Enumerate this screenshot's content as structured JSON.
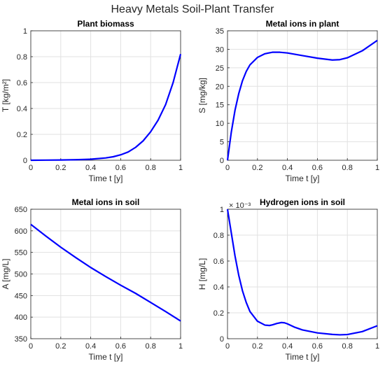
{
  "figure": {
    "title": "Heavy Metals Soil-Plant Transfer"
  },
  "colors": {
    "line": "#0000ff",
    "grid": "#e1e1e1",
    "axes": "#262626"
  },
  "chart_data": [
    {
      "type": "line",
      "title": "Plant biomass",
      "xlabel": "Time t [y]",
      "ylabel": "T [kg/m²]",
      "xlim": [
        0,
        1
      ],
      "ylim": [
        0,
        1
      ],
      "xticks": [
        0,
        0.2,
        0.4,
        0.6,
        0.8,
        1
      ],
      "xtick_labels": [
        "0",
        "0.2",
        "0.4",
        "0.6",
        "0.8",
        "1"
      ],
      "yticks": [
        0,
        0.2,
        0.4,
        0.6,
        0.8,
        1
      ],
      "ytick_labels": [
        "0",
        "0.2",
        "0.4",
        "0.6",
        "0.8",
        "1"
      ],
      "grid": true,
      "series": [
        {
          "x": [
            0,
            0.1,
            0.2,
            0.3,
            0.4,
            0.5,
            0.55,
            0.6,
            0.65,
            0.7,
            0.75,
            0.8,
            0.85,
            0.9,
            0.95,
            1
          ],
          "y": [
            0,
            0.001,
            0.002,
            0.004,
            0.008,
            0.018,
            0.027,
            0.042,
            0.064,
            0.1,
            0.15,
            0.22,
            0.31,
            0.43,
            0.6,
            0.82
          ]
        }
      ]
    },
    {
      "type": "line",
      "title": "Metal ions in plant",
      "xlabel": "Time t [y]",
      "ylabel": "S [mg/kg]",
      "xlim": [
        0,
        1
      ],
      "ylim": [
        0,
        35
      ],
      "xticks": [
        0,
        0.2,
        0.4,
        0.6,
        0.8,
        1
      ],
      "xtick_labels": [
        "0",
        "0.2",
        "0.4",
        "0.6",
        "0.8",
        "1"
      ],
      "yticks": [
        0,
        5,
        10,
        15,
        20,
        25,
        30,
        35
      ],
      "ytick_labels": [
        "0",
        "5",
        "10",
        "15",
        "20",
        "25",
        "30",
        "35"
      ],
      "grid": true,
      "series": [
        {
          "x": [
            0,
            0.025,
            0.05,
            0.075,
            0.1,
            0.125,
            0.15,
            0.2,
            0.25,
            0.3,
            0.35,
            0.4,
            0.5,
            0.6,
            0.7,
            0.75,
            0.8,
            0.9,
            1
          ],
          "y": [
            0,
            7.5,
            13.5,
            18,
            21.5,
            24,
            25.8,
            27.8,
            28.8,
            29.2,
            29.2,
            29,
            28.3,
            27.6,
            27.1,
            27.2,
            27.7,
            29.6,
            32.4
          ]
        }
      ]
    },
    {
      "type": "line",
      "title": "Metal ions in soil",
      "xlabel": "Time t [y]",
      "ylabel": "A [mg/L]",
      "xlim": [
        0,
        1
      ],
      "ylim": [
        350,
        650
      ],
      "xticks": [
        0,
        0.2,
        0.4,
        0.6,
        0.8,
        1
      ],
      "xtick_labels": [
        "0",
        "0.2",
        "0.4",
        "0.6",
        "0.8",
        "1"
      ],
      "yticks": [
        350,
        400,
        450,
        500,
        550,
        600,
        650
      ],
      "ytick_labels": [
        "350",
        "400",
        "450",
        "500",
        "550",
        "600",
        "650"
      ],
      "grid": true,
      "series": [
        {
          "x": [
            0,
            0.1,
            0.2,
            0.3,
            0.4,
            0.5,
            0.6,
            0.7,
            0.8,
            0.9,
            1
          ],
          "y": [
            615,
            588,
            562,
            538,
            515,
            494,
            474,
            455,
            434,
            413,
            391
          ]
        }
      ]
    },
    {
      "type": "line",
      "title": "Hydrogen ions in soil",
      "xlabel": "Time t [y]",
      "ylabel": "H [mg/L]",
      "xlim": [
        0,
        1
      ],
      "ylim": [
        0,
        0.001
      ],
      "xticks": [
        0,
        0.2,
        0.4,
        0.6,
        0.8,
        1
      ],
      "xtick_labels": [
        "0",
        "0.2",
        "0.4",
        "0.6",
        "0.8",
        "1"
      ],
      "yticks": [
        0,
        0.0002,
        0.0004,
        0.0006,
        0.0008,
        0.001
      ],
      "ytick_labels": [
        "0",
        "0.2",
        "0.4",
        "0.6",
        "0.8",
        "1"
      ],
      "y_exponent_label": "× 10⁻³",
      "grid": true,
      "series": [
        {
          "x": [
            0,
            0.025,
            0.05,
            0.075,
            0.1,
            0.125,
            0.15,
            0.2,
            0.25,
            0.28,
            0.3,
            0.33,
            0.36,
            0.38,
            0.4,
            0.45,
            0.5,
            0.6,
            0.7,
            0.75,
            0.8,
            0.9,
            1
          ],
          "y": [
            0.001,
            0.00082,
            0.00064,
            0.00049,
            0.00037,
            0.00028,
            0.00021,
            0.000135,
            0.000105,
            0.000102,
            0.000107,
            0.000118,
            0.000125,
            0.000123,
            0.000115,
            8.8e-05,
            6.8e-05,
            4.5e-05,
            3.3e-05,
            3e-05,
            3.2e-05,
            5.5e-05,
            0.0001
          ]
        }
      ]
    }
  ]
}
